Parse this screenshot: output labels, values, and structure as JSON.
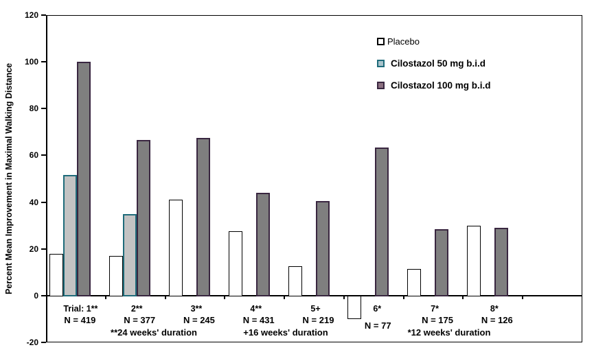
{
  "chart_data": {
    "type": "bar",
    "title": "",
    "ylabel": "Percent Mean Improvement in Maximal Walking Distance",
    "xlabel": "",
    "ylim": [
      -20,
      120
    ],
    "yticks": [
      120,
      100,
      80,
      60,
      40,
      20,
      0,
      -20
    ],
    "grid": false,
    "legend_position": "top-right-inside",
    "categories": [
      "Trial: 1**",
      "2**",
      "3**",
      "4**",
      "5+",
      "6*",
      "7*",
      "8*"
    ],
    "n_labels": [
      "N = 419",
      "N = 377",
      "N = 245",
      "N = 431",
      "N = 219",
      "N = 77",
      "N = 175",
      "N = 126"
    ],
    "duration_footnotes": [
      "**24 weeks' duration",
      "+16 weeks' duration",
      "*12 weeks' duration"
    ],
    "series": [
      {
        "name": "Placebo",
        "key": "placebo",
        "fill": "#ffffff",
        "border": "#000000",
        "values": [
          18,
          17,
          41,
          27.5,
          12.5,
          -10,
          11.5,
          30
        ]
      },
      {
        "name": "Cilostazol 50 mg b.i.d",
        "key": "cilostazol-50",
        "fill": "#c3c3c3",
        "border": "#1e6b7a",
        "values": [
          51.5,
          35,
          null,
          null,
          null,
          null,
          null,
          null
        ]
      },
      {
        "name": "Cilostazol 100 mg b.i.d",
        "key": "cilostazol-100",
        "fill": "#7f7f7f",
        "border": "#392640",
        "values": [
          100,
          66.5,
          67.5,
          44,
          40.5,
          63.5,
          28.5,
          29
        ]
      }
    ]
  },
  "legend": {
    "items": [
      {
        "label": "Placebo",
        "swatch_fill": "#ffffff",
        "swatch_border": "#000000"
      },
      {
        "label": "Cilostazol 50 mg b.i.d",
        "swatch_fill": "#a9c3cb",
        "swatch_border": "#1e6b7a"
      },
      {
        "label": "Cilostazol 100 mg b.i.d",
        "swatch_fill": "#8b7080",
        "swatch_border": "#392640"
      }
    ]
  },
  "colors": {
    "axis": "#000000",
    "background": "#ffffff",
    "placebo_fill": "#ffffff",
    "cilostazol50_fill": "#c3c3c3",
    "cilostazol50_border": "#1e6b7a",
    "cilostazol100_fill": "#7f7f7f",
    "cilostazol100_border": "#392640"
  }
}
